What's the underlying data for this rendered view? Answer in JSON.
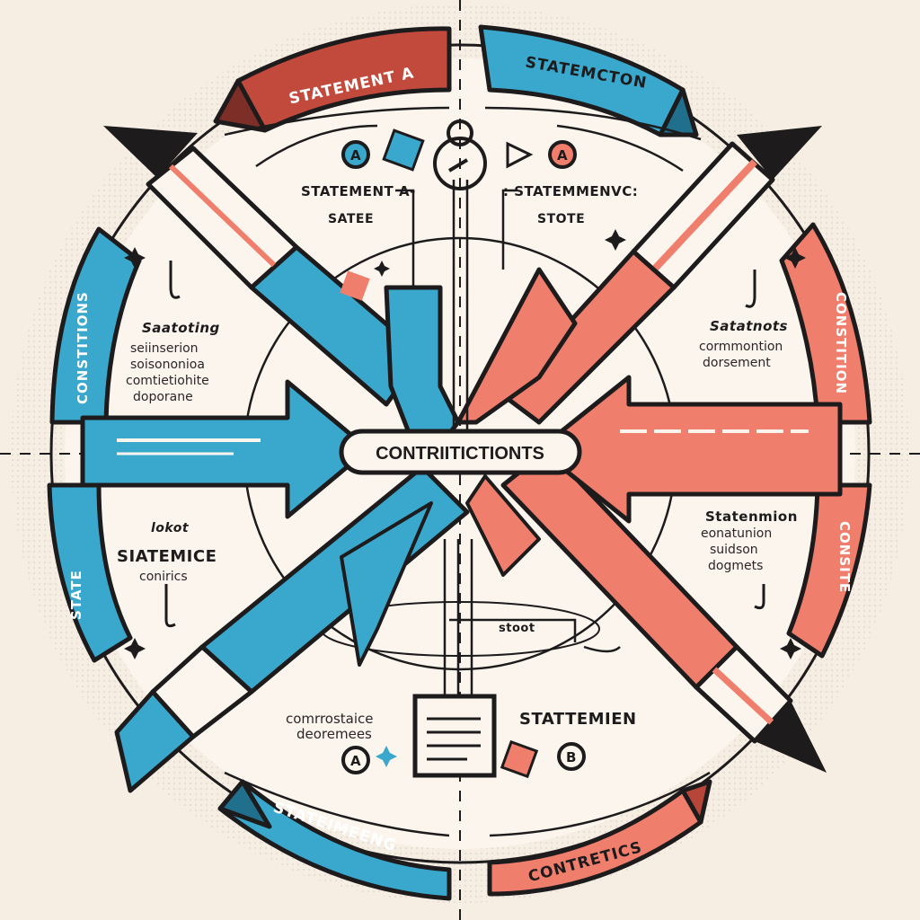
{
  "colors": {
    "background": "#f6ede3",
    "blue": "#3aa7cd",
    "coral": "#f07e6c",
    "ink": "#1d1b1c",
    "dark_red": "#b8453a"
  },
  "bands": {
    "top_left": "STATEMENT A",
    "top_right": "STATEMCTON",
    "left_upper": "CONSTITIONS",
    "left_lower": "STATE",
    "right_upper": "CONSTITION",
    "right_lower": "CONSITE",
    "bottom_left": "STATEIMEENG",
    "bottom_right": "CONTRETICS"
  },
  "center": {
    "label": "CONTRIITICTIONTS"
  },
  "labels": {
    "statement_a": "STATEMENT A-",
    "statement_b": ": STATEMMENVC:",
    "sate": "SATEE",
    "stote": "STOTE",
    "left_block": [
      "Saatoting",
      "seiinserion",
      "soisononioa",
      "comtietiohite",
      "doporane"
    ],
    "right_block": [
      "Satatnots",
      "cormmontion",
      "dorsement"
    ],
    "left_lower_block": [
      "lokot",
      "SIATEMICE",
      "conirics"
    ],
    "right_lower_block": [
      "Statenmion",
      "eonatunion",
      "suidson",
      "dogmets"
    ],
    "stoot": "stoot",
    "bottom_left_block": [
      "comrrostaice",
      "deoremees"
    ],
    "bottom_right_text": "STATTEMIEN",
    "badge_a": "A",
    "badge_b": "B"
  },
  "icons": [
    "statement-a-badge",
    "statement-b-badge",
    "swirl-icon",
    "document-icon",
    "star-icon",
    "sparkle-icon",
    "hook-icon"
  ]
}
